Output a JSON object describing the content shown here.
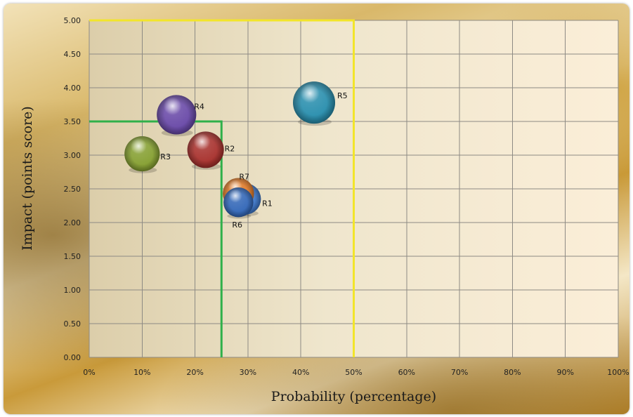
{
  "chart_data": {
    "type": "scatter",
    "subtype": "bubble",
    "xlabel": "Probability (percentage)",
    "ylabel": "Impact (points score)",
    "xlim": [
      0,
      1
    ],
    "ylim": [
      0,
      5
    ],
    "x_ticks": [
      0,
      0.1,
      0.2,
      0.3,
      0.4,
      0.5,
      0.6,
      0.7,
      0.8,
      0.9,
      1.0
    ],
    "x_tick_labels": [
      "0%",
      "10%",
      "20%",
      "30%",
      "40%",
      "50%",
      "60%",
      "70%",
      "80%",
      "90%",
      "100%"
    ],
    "y_ticks": [
      0,
      0.5,
      1,
      1.5,
      2,
      2.5,
      3,
      3.5,
      4,
      4.5,
      5
    ],
    "y_tick_labels": [
      "0.00",
      "0.50",
      "1.00",
      "1.50",
      "2.00",
      "2.50",
      "3.00",
      "3.50",
      "4.00",
      "4.50",
      "5.00"
    ],
    "grid": true,
    "points": [
      {
        "label": "R1",
        "x": 0.295,
        "y": 2.35,
        "size": 2.2,
        "color": "#3f78c9"
      },
      {
        "label": "R2",
        "x": 0.22,
        "y": 3.08,
        "size": 3.0,
        "color": "#a8322e"
      },
      {
        "label": "R3",
        "x": 0.1,
        "y": 3.02,
        "size": 2.8,
        "color": "#86a032"
      },
      {
        "label": "R4",
        "x": 0.165,
        "y": 3.6,
        "size": 3.5,
        "color": "#6a4aa8"
      },
      {
        "label": "R5",
        "x": 0.425,
        "y": 3.78,
        "size": 4.0,
        "color": "#2a8fae"
      },
      {
        "label": "R6",
        "x": 0.282,
        "y": 2.3,
        "size": 2.0,
        "color": "#3468b8"
      },
      {
        "label": "R7",
        "x": 0.282,
        "y": 2.43,
        "size": 2.2,
        "color": "#e07a28"
      }
    ],
    "reference_lines": [
      {
        "color": "#2fb04a",
        "x": 0.25,
        "y": 3.5
      },
      {
        "color": "#f2e52a",
        "x": 0.5,
        "y": 5.0
      }
    ]
  }
}
